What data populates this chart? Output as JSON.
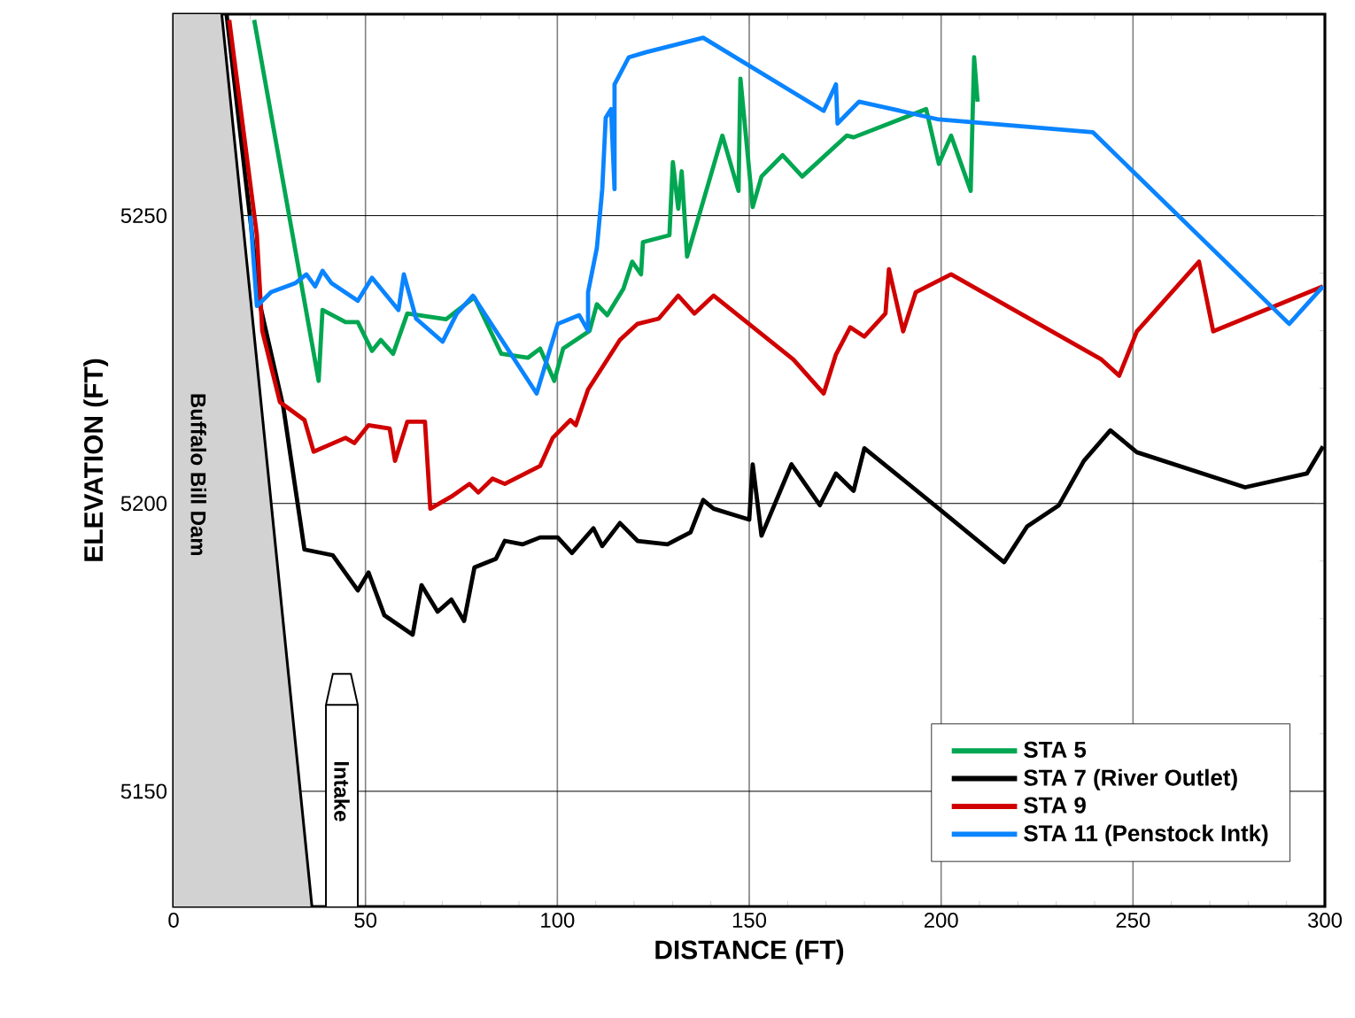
{
  "chart_data": {
    "type": "line",
    "xlabel": "DISTANCE (FT)",
    "ylabel": "ELEVATION (FT)",
    "xlim": [
      0,
      300
    ],
    "ylim": [
      5130,
      5285
    ],
    "xticks": [
      0,
      50,
      100,
      150,
      200,
      250,
      300
    ],
    "yticks": [
      5150,
      5200,
      5250
    ],
    "grid": true,
    "legend": "bottom right",
    "marker": "none",
    "line_style": "solid",
    "annotations": [
      "Buffalo Bill Dam",
      "Intake"
    ],
    "series": [
      {
        "name": "STA 5",
        "color": "#00a651",
        "x": [
          21,
          37.8,
          38.8,
          44.8,
          48,
          51.7,
          54,
          57.2,
          60.9,
          71,
          78.4,
          85.4,
          92.3,
          95.5,
          99.2,
          101.5,
          108.4,
          110.3,
          113,
          117.2,
          119.5,
          121.8,
          122.3,
          129.2,
          130.1,
          131.5,
          132.4,
          133.8,
          143,
          147.2,
          147.7,
          150.9,
          153.2,
          158.7,
          163.8,
          175.4,
          177.2,
          196.1,
          199.4,
          202.6,
          207.7,
          208.6,
          209.5
        ],
        "values": [
          5284,
          5221.3,
          5233.6,
          5231.5,
          5231.5,
          5226.5,
          5228.4,
          5226,
          5233,
          5232,
          5235.8,
          5226,
          5225.3,
          5226.9,
          5221.3,
          5226.9,
          5230,
          5234.6,
          5232.7,
          5237.3,
          5242,
          5239.8,
          5245.4,
          5246.6,
          5259.3,
          5251.2,
          5257.7,
          5242.9,
          5263.9,
          5254.3,
          5273.8,
          5251.5,
          5256.8,
          5260.5,
          5256.8,
          5263.9,
          5263.6,
          5268.5,
          5259,
          5263.9,
          5254.3,
          5277.5,
          5269.8
        ]
      },
      {
        "name": "STA 7 (River Outlet)",
        "color": "#000000",
        "x": [
          13.8,
          22.6,
          28.6,
          34.1,
          41.5,
          48,
          50.8,
          54.9,
          62.3,
          64.6,
          68.8,
          72.4,
          75.7,
          78.4,
          84,
          86.3,
          90.9,
          95.5,
          100.1,
          103.8,
          109.4,
          111.7,
          116.3,
          120.9,
          128.7,
          134.7,
          138,
          140.7,
          150,
          150.9,
          153.2,
          161,
          168.4,
          172.6,
          177.2,
          180,
          199.4,
          216.4,
          222.4,
          230.7,
          237.2,
          244.1,
          251,
          279.2,
          295.3,
          299.5
        ],
        "values": [
          5285,
          5234.3,
          5216.7,
          5192,
          5191,
          5184.9,
          5188,
          5180.6,
          5177.2,
          5185.8,
          5181.2,
          5183.3,
          5179.6,
          5188.9,
          5190.4,
          5193.5,
          5192.9,
          5194.1,
          5194.1,
          5191.4,
          5195.7,
          5192.6,
          5196.6,
          5193.5,
          5192.9,
          5195,
          5200.6,
          5199.1,
          5197.2,
          5206.8,
          5194.4,
          5206.8,
          5199.7,
          5205.2,
          5202.2,
          5209.6,
          5199.1,
          5189.8,
          5196,
          5199.7,
          5207.4,
          5212.7,
          5208.9,
          5202.8,
          5205.2,
          5209.9
        ]
      },
      {
        "name": "STA 9",
        "color": "#d00000",
        "x": [
          14.5,
          21.7,
          23.1,
          27.7,
          34.1,
          36.5,
          44.8,
          47.1,
          50.8,
          56.3,
          57.7,
          60.9,
          65.5,
          66.9,
          72.4,
          77.1,
          79.4,
          83.1,
          86.3,
          95.5,
          98.8,
          103.4,
          104.8,
          108,
          116.3,
          120.9,
          126.4,
          131.5,
          135.7,
          140.7,
          161.5,
          169.4,
          172.6,
          176.3,
          180,
          185.5,
          186.4,
          190.1,
          193.4,
          202.6,
          241.8,
          246.4,
          251,
          267.2,
          270.9,
          299.5
        ],
        "values": [
          5284,
          5246.6,
          5230,
          5217.6,
          5214.5,
          5209,
          5211.4,
          5210.5,
          5213.6,
          5213,
          5207.4,
          5214.2,
          5214.2,
          5199.1,
          5201.2,
          5203.4,
          5201.9,
          5204.3,
          5203.4,
          5206.5,
          5211.4,
          5214.5,
          5213.6,
          5219.8,
          5228.4,
          5231.2,
          5232.1,
          5236.1,
          5233,
          5236.1,
          5225,
          5219.1,
          5225.9,
          5230.6,
          5229,
          5233,
          5240.7,
          5229.9,
          5236.7,
          5239.8,
          5225,
          5222.2,
          5229.9,
          5242,
          5229.9,
          5237.7
        ]
      },
      {
        "name": "STA 11 (Penstock Intk)",
        "color": "#0a84ff",
        "x": [
          20,
          21.7,
          25.4,
          31.8,
          34.6,
          36.9,
          38.8,
          41.1,
          48,
          51.7,
          58.6,
          60,
          63.2,
          70.1,
          73.8,
          78,
          94.6,
          100.1,
          105.7,
          108,
          108,
          110.3,
          111.7,
          112.6,
          114,
          114.9,
          114.9,
          118.6,
          123.2,
          138,
          169.4,
          172.6,
          173,
          178.6,
          199.4,
          239.5,
          290.7,
          299.5
        ],
        "values": [
          5250,
          5234.3,
          5236.7,
          5238.3,
          5239.8,
          5237.7,
          5240.4,
          5238.3,
          5235.2,
          5239.2,
          5233.6,
          5239.8,
          5232.1,
          5228.1,
          5233,
          5236.1,
          5219.1,
          5231.2,
          5232.7,
          5230,
          5236.7,
          5244.4,
          5254.6,
          5267,
          5268.5,
          5254.6,
          5272.8,
          5277.5,
          5278.4,
          5280.9,
          5268.2,
          5272.8,
          5266,
          5269.8,
          5266.7,
          5264.5,
          5231.2,
          5237.7
        ]
      }
    ]
  }
}
